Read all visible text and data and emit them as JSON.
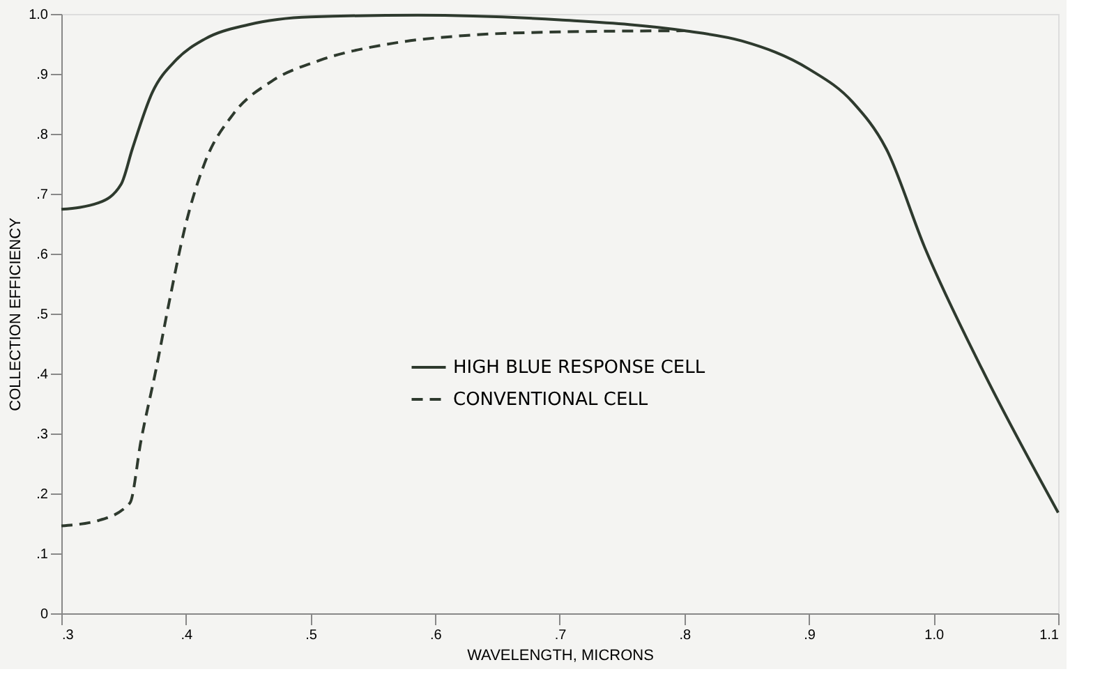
{
  "chart_data": {
    "type": "line",
    "xlabel": "WAVELENGTH, MICRONS",
    "ylabel": "COLLECTION EFFICIENCY",
    "xlim": [
      0.3,
      1.1
    ],
    "xticks": [
      {
        "value": 0.3,
        "label": ".3"
      },
      {
        "value": 0.4,
        "label": ".4"
      },
      {
        "value": 0.5,
        "label": ".5"
      },
      {
        "value": 0.6,
        "label": ".6"
      },
      {
        "value": 0.7,
        "label": ".7"
      },
      {
        "value": 0.8,
        "label": ".8"
      },
      {
        "value": 0.9,
        "label": ".9"
      },
      {
        "value": 1.0,
        "label": "1.0"
      },
      {
        "value": 1.1,
        "label": "1.1"
      }
    ],
    "ylim": [
      0,
      1.0
    ],
    "yticks": [
      0,
      {
        "value": 0.1,
        "label": ".1"
      },
      {
        "value": 0.2,
        "label": ".2"
      },
      {
        "value": 0.3,
        "label": ".3"
      },
      {
        "value": 0.4,
        "label": ".4"
      },
      {
        "value": 0.5,
        "label": ".5"
      },
      {
        "value": 0.6,
        "label": ".6"
      },
      {
        "value": 0.7,
        "label": ".7"
      },
      {
        "value": 0.8,
        "label": ".8"
      },
      {
        "value": 0.9,
        "label": ".9"
      },
      {
        "value": 1.0,
        "label": "1.0"
      }
    ],
    "grid": false,
    "legend": "center",
    "marker": "none",
    "series": [
      {
        "name": "HIGH BLUE RESPONSE CELL",
        "color": "#2e3a2e",
        "line_style": "solid",
        "x": [
          0.3,
          0.33,
          0.348,
          0.357,
          0.373,
          0.392,
          0.415,
          0.45,
          0.5,
          0.586,
          0.7,
          0.8,
          0.846,
          0.9,
          0.935,
          0.962,
          0.993,
          1.039,
          1.1
        ],
        "values": [
          0.674,
          0.685,
          0.716,
          0.775,
          0.869,
          0.923,
          0.958,
          0.982,
          0.995,
          0.998,
          0.99,
          0.972,
          0.955,
          0.908,
          0.853,
          0.775,
          0.61,
          0.407,
          0.168
        ]
      },
      {
        "name": "CONVENTIONAL CELL",
        "color": "#2e3a2e",
        "line_style": "dashed",
        "x": [
          0.3,
          0.33,
          0.355,
          0.364,
          0.376,
          0.387,
          0.399,
          0.415,
          0.438,
          0.469,
          0.508,
          0.566,
          0.624,
          0.7,
          0.8
        ],
        "values": [
          0.146,
          0.155,
          0.184,
          0.289,
          0.407,
          0.524,
          0.642,
          0.751,
          0.833,
          0.888,
          0.923,
          0.951,
          0.964,
          0.97,
          0.972
        ]
      }
    ]
  }
}
